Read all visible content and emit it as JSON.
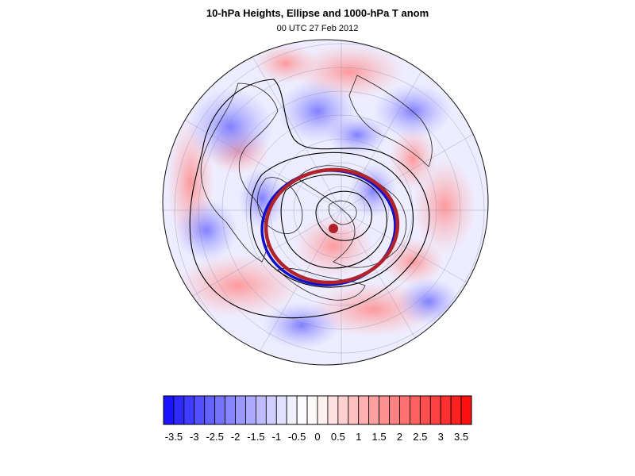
{
  "header": {
    "title": "10-hPa Heights, Ellipse and 1000-hPa T anom",
    "subtitle": "00 UTC 27 Feb 2012"
  },
  "map": {
    "projection": "north-polar orthographic",
    "fill_field": "1000-hPa temperature anomaly",
    "contour_field": "10-hPa geopotential height",
    "ellipse_colors": {
      "outer": "#b0232a",
      "inner": "#1010c8"
    },
    "center_marker_color": "#b0232a"
  },
  "colorbar": {
    "levels": [
      -3.75,
      -3.5,
      -3.25,
      -3,
      -2.75,
      -2.5,
      -2.25,
      -2,
      -1.75,
      -1.5,
      -1.25,
      -1,
      -0.75,
      -0.5,
      -0.25,
      0,
      0.25,
      0.5,
      0.75,
      1,
      1.25,
      1.5,
      1.75,
      2,
      2.25,
      2.5,
      2.75,
      3,
      3.25,
      3.5,
      3.75
    ],
    "labels": [
      "-3.5",
      "-3",
      "-2.5",
      "-2",
      "-1.5",
      "-1",
      "-0.5",
      "0",
      "0.5",
      "1",
      "1.5",
      "2",
      "2.5",
      "3",
      "3.5"
    ],
    "label_values": [
      -3.5,
      -3,
      -2.5,
      -2,
      -1.5,
      -1,
      -0.5,
      0,
      0.5,
      1,
      1.5,
      2,
      2.5,
      3,
      3.5
    ],
    "colors": [
      "#1a14ff",
      "#2e2aff",
      "#403cff",
      "#5250ff",
      "#6462ff",
      "#7674ff",
      "#8886ff",
      "#9a98ff",
      "#acaaff",
      "#bebcff",
      "#d0ceff",
      "#e2e0ff",
      "#f0f0ff",
      "#fbfbff",
      "#fffafa",
      "#fff0f0",
      "#ffe0e0",
      "#ffd0d0",
      "#ffc0c0",
      "#ffb0b0",
      "#ffa0a0",
      "#ff9090",
      "#ff8080",
      "#ff7070",
      "#ff6060",
      "#ff5050",
      "#ff4040",
      "#ff3030",
      "#ff2020",
      "#ff1010"
    ]
  }
}
